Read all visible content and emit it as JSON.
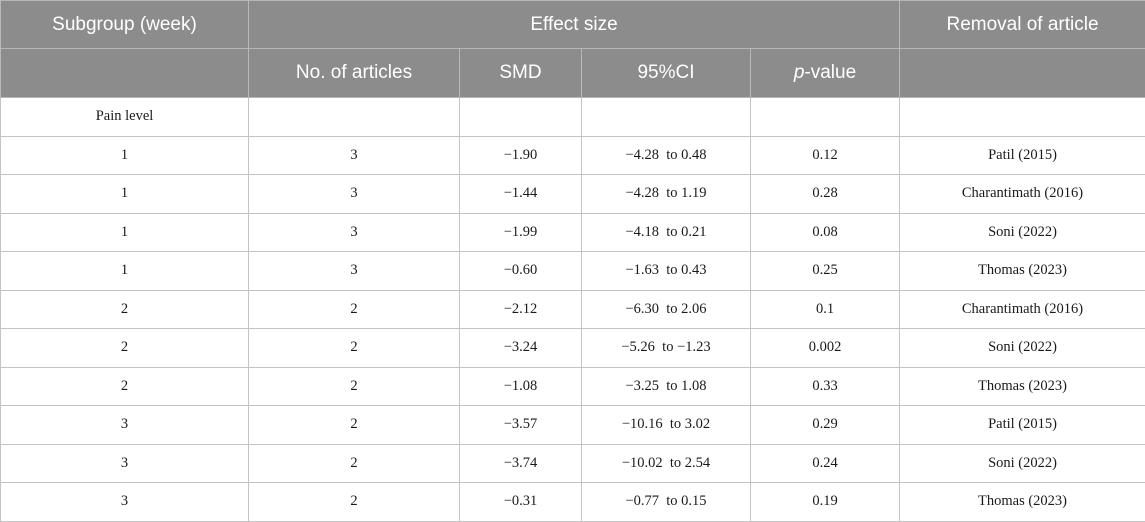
{
  "header": {
    "subgroup": "Subgroup (week)",
    "effect_size": "Effect size",
    "removal": "Removal of article",
    "no_articles": "No. of articles",
    "smd": "SMD",
    "ci": "95%CI",
    "p_italic": "p",
    "p_suffix": "-value"
  },
  "section_label": "Pain level",
  "rows": [
    {
      "week": "1",
      "articles": "3",
      "smd": "−1.90",
      "ci": "−4.28  to 0.48",
      "p": "0.12",
      "removal": "Patil (2015)"
    },
    {
      "week": "1",
      "articles": "3",
      "smd": "−1.44",
      "ci": "−4.28  to 1.19",
      "p": "0.28",
      "removal": "Charantimath (2016)"
    },
    {
      "week": "1",
      "articles": "3",
      "smd": "−1.99",
      "ci": "−4.18  to 0.21",
      "p": "0.08",
      "removal": "Soni (2022)"
    },
    {
      "week": "1",
      "articles": "3",
      "smd": "−0.60",
      "ci": "−1.63  to 0.43",
      "p": "0.25",
      "removal": "Thomas (2023)"
    },
    {
      "week": "2",
      "articles": "2",
      "smd": "−2.12",
      "ci": "−6.30  to 2.06",
      "p": "0.1",
      "removal": "Charantimath (2016)"
    },
    {
      "week": "2",
      "articles": "2",
      "smd": "−3.24",
      "ci": "−5.26  to −1.23",
      "p": "0.002",
      "removal": "Soni (2022)"
    },
    {
      "week": "2",
      "articles": "2",
      "smd": "−1.08",
      "ci": "−3.25  to 1.08",
      "p": "0.33",
      "removal": "Thomas (2023)"
    },
    {
      "week": "3",
      "articles": "2",
      "smd": "−3.57",
      "ci": "−10.16  to 3.02",
      "p": "0.29",
      "removal": "Patil (2015)"
    },
    {
      "week": "3",
      "articles": "2",
      "smd": "−3.74",
      "ci": "−10.02  to 2.54",
      "p": "0.24",
      "removal": "Soni (2022)"
    },
    {
      "week": "3",
      "articles": "2",
      "smd": "−0.31",
      "ci": "−0.77  to 0.15",
      "p": "0.19",
      "removal": "Thomas (2023)"
    }
  ]
}
